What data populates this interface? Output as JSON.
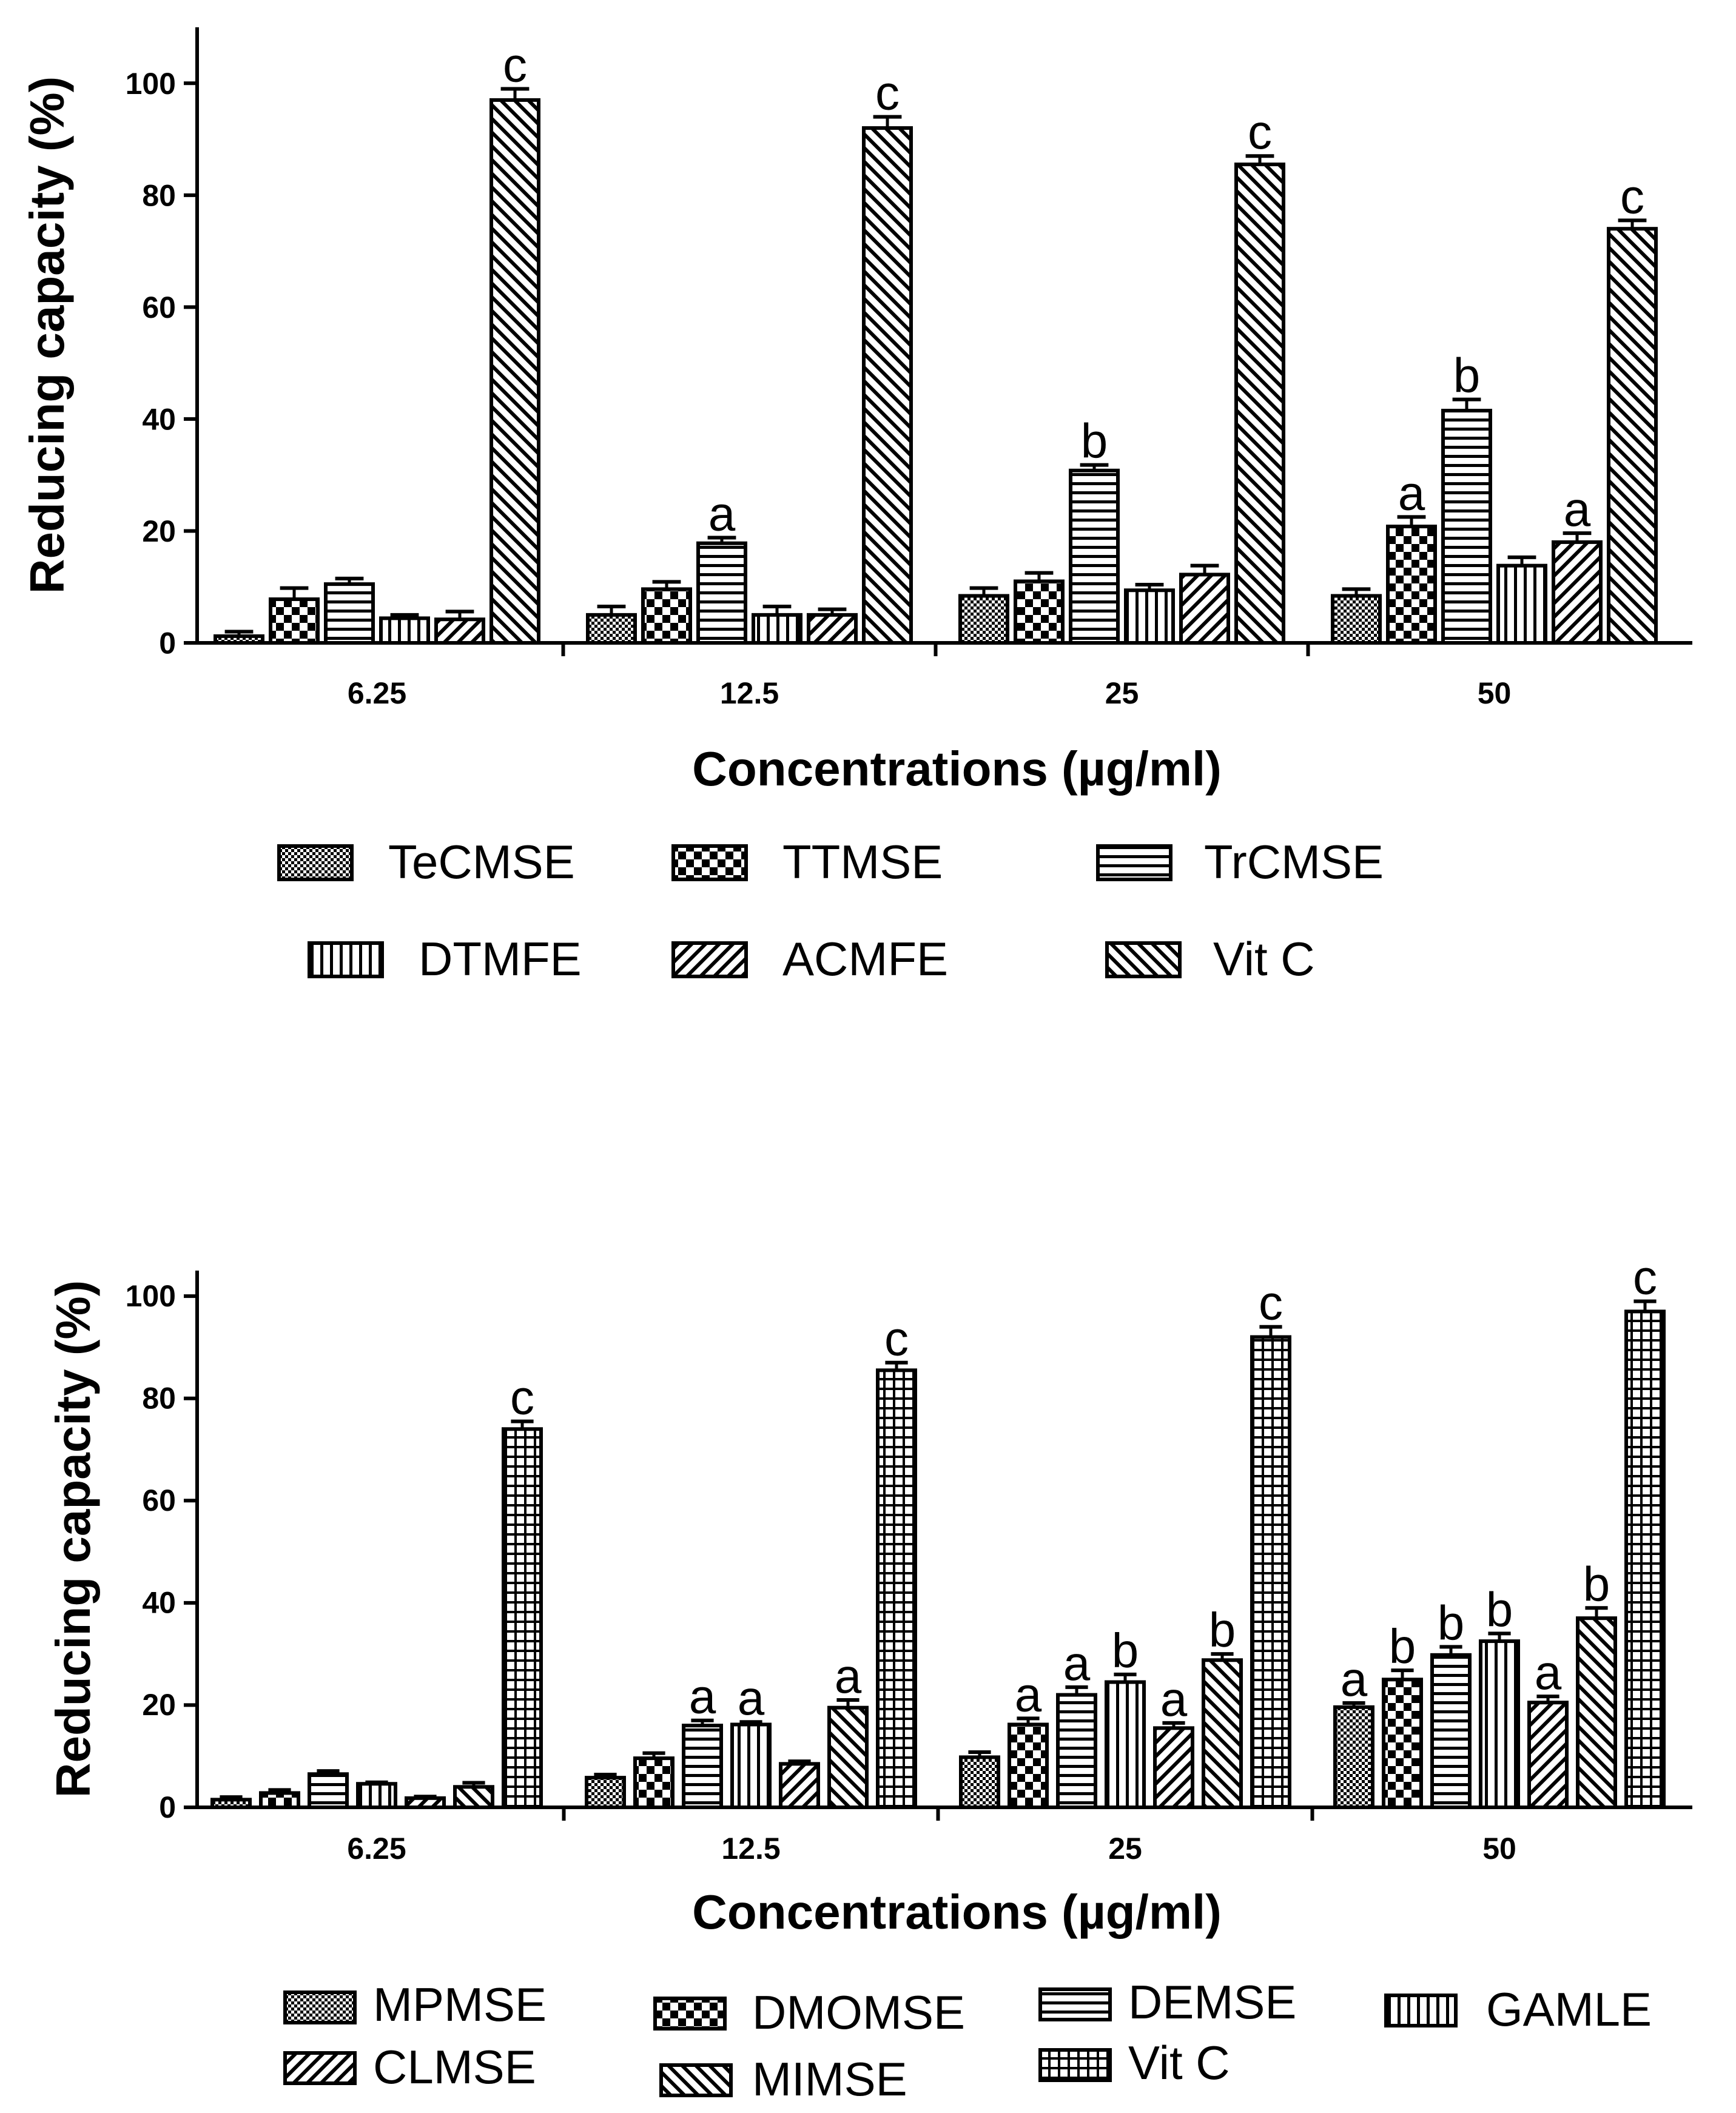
{
  "chart_data": [
    {
      "type": "bar",
      "title": "",
      "xlabel": "Concentrations (µg/ml)",
      "ylabel": "Reducing capacity (%)",
      "ylim": [
        0,
        110
      ],
      "yticks": [
        0,
        20,
        40,
        60,
        80,
        100
      ],
      "categories": [
        "6.25",
        "12.5",
        "25",
        "50"
      ],
      "series": [
        {
          "name": "TeCMSE",
          "pattern": "checker-fine",
          "values": [
            1.2,
            5.0,
            8.4,
            8.4
          ],
          "errors": [
            0.8,
            1.5,
            1.4,
            1.2
          ],
          "labels": [
            "",
            "",
            "",
            ""
          ]
        },
        {
          "name": "TTMSE",
          "pattern": "checker-big",
          "values": [
            7.8,
            9.6,
            11.0,
            20.8
          ],
          "errors": [
            2.0,
            1.3,
            1.5,
            1.7
          ],
          "labels": [
            "",
            "",
            "",
            "a"
          ]
        },
        {
          "name": "TrCMSE",
          "pattern": "hlines",
          "values": [
            10.5,
            17.8,
            30.8,
            41.5
          ],
          "errors": [
            1.0,
            1.0,
            1.0,
            2.0
          ],
          "labels": [
            "",
            "a",
            "b",
            "b"
          ]
        },
        {
          "name": "DTMFE",
          "pattern": "vlines",
          "values": [
            4.4,
            5.0,
            9.4,
            13.8
          ],
          "errors": [
            0.6,
            1.5,
            1.0,
            1.5
          ],
          "labels": [
            "",
            "",
            "",
            ""
          ]
        },
        {
          "name": "ACMFE",
          "pattern": "diag-up",
          "values": [
            4.2,
            5.0,
            12.2,
            18.0
          ],
          "errors": [
            1.4,
            1.0,
            1.6,
            1.6
          ],
          "labels": [
            "",
            "",
            "",
            "a"
          ]
        },
        {
          "name": "Vit C",
          "pattern": "diag-down",
          "values": [
            97.0,
            92.0,
            85.5,
            74.0
          ],
          "errors": [
            2.0,
            2.0,
            1.5,
            1.5
          ],
          "labels": [
            "c",
            "c",
            "c",
            "c"
          ]
        }
      ]
    },
    {
      "type": "bar",
      "title": "",
      "xlabel": "Concentrations (µg/ml)",
      "ylabel": "Reducing capacity (%)",
      "ylim": [
        0,
        105
      ],
      "yticks": [
        0,
        20,
        40,
        60,
        80,
        100
      ],
      "categories": [
        "6.25",
        "12.5",
        "25",
        "50"
      ],
      "series": [
        {
          "name": "MPMSE",
          "pattern": "checker-fine",
          "values": [
            1.5,
            5.8,
            9.8,
            19.6
          ],
          "errors": [
            0.5,
            0.6,
            1.0,
            0.8
          ],
          "labels": [
            "",
            "",
            "",
            "a"
          ]
        },
        {
          "name": "DMOMSE",
          "pattern": "checker-big",
          "values": [
            2.8,
            9.6,
            16.2,
            25.0
          ],
          "errors": [
            0.6,
            1.0,
            1.2,
            1.8
          ],
          "labels": [
            "",
            "",
            "a",
            "b"
          ]
        },
        {
          "name": "DEMSE",
          "pattern": "hlines",
          "values": [
            6.5,
            16.0,
            22.0,
            29.8
          ],
          "errors": [
            0.6,
            1.0,
            1.5,
            1.6
          ],
          "labels": [
            "",
            "a",
            "a",
            "b"
          ]
        },
        {
          "name": "GAMLE",
          "pattern": "vlines",
          "values": [
            4.6,
            16.2,
            24.5,
            32.5
          ],
          "errors": [
            0.3,
            0.5,
            1.5,
            1.5
          ],
          "labels": [
            "",
            "a",
            "b",
            "b"
          ]
        },
        {
          "name": "CLMSE",
          "pattern": "diag-up",
          "values": [
            1.8,
            8.5,
            15.5,
            20.5
          ],
          "errors": [
            0.3,
            0.5,
            1.0,
            1.2
          ],
          "labels": [
            "",
            "",
            "a",
            "a"
          ]
        },
        {
          "name": "MIMSE",
          "pattern": "diag-down",
          "values": [
            4.0,
            19.5,
            28.8,
            37.0
          ],
          "errors": [
            0.8,
            1.5,
            1.2,
            2.0
          ],
          "labels": [
            "",
            "a",
            "b",
            "b"
          ]
        },
        {
          "name": "Vit C",
          "pattern": "grid",
          "values": [
            74.0,
            85.5,
            92.0,
            97.0
          ],
          "errors": [
            1.5,
            1.5,
            2.0,
            2.0
          ],
          "labels": [
            "c",
            "c",
            "c",
            "c"
          ]
        }
      ]
    }
  ]
}
